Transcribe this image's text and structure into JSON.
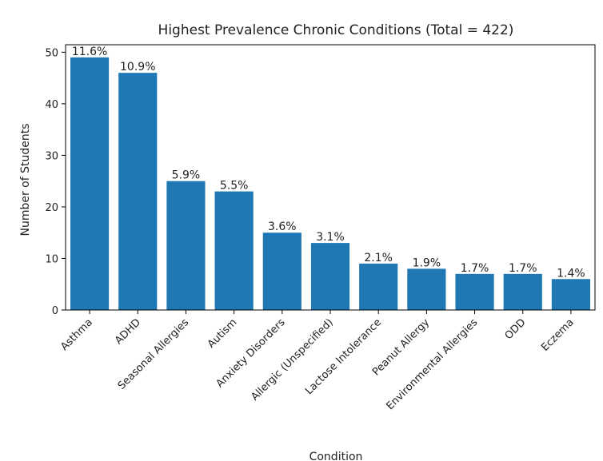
{
  "chart_data": {
    "type": "bar",
    "title": "Highest Prevalence Chronic Conditions (Total = 422)",
    "xlabel": "Condition",
    "ylabel": "Number of Students",
    "categories": [
      "Asthma",
      "ADHD",
      "Seasonal Allergies",
      "Autism",
      "Anxiety Disorders",
      "Allergic (Unspecified)",
      "Lactose Intolerance",
      "Peanut Allergy",
      "Environmental Allergies",
      "ODD",
      "Eczema"
    ],
    "values": [
      49,
      46,
      25,
      23,
      15,
      13,
      9,
      8,
      7,
      7,
      6
    ],
    "bar_labels": [
      "11.6%",
      "10.9%",
      "5.9%",
      "5.5%",
      "3.6%",
      "3.1%",
      "2.1%",
      "1.9%",
      "1.7%",
      "1.7%",
      "1.4%"
    ],
    "ylim": [
      0,
      51.45
    ],
    "yticks": [
      0,
      10,
      20,
      30,
      40,
      50
    ],
    "grid": false,
    "bar_color": "#1f77b4"
  }
}
